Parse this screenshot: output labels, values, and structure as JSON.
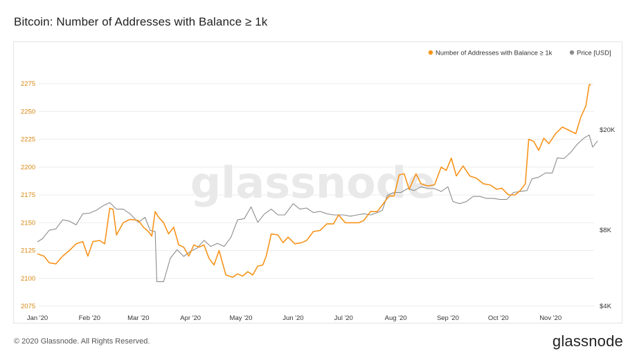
{
  "header": {
    "title": "Bitcoin: Number of Addresses with Balance ≥ 1k"
  },
  "footer": {
    "copyright": "© 2020 Glassnode. All Rights Reserved.",
    "brand": "glassnode"
  },
  "watermark": "glassnode",
  "colors": {
    "addresses": "#f7931a",
    "price": "#8c8c8c",
    "left_axis_text": "#d8860f"
  },
  "chart_data": {
    "type": "line",
    "title": "Bitcoin: Number of Addresses with Balance ≥ 1k",
    "legend_position": "top-right",
    "grid": "horizontal",
    "x_range": [
      "2020-01-01",
      "2020-11-29"
    ],
    "x_ticks": [
      "Jan '20",
      "Feb '20",
      "Mar '20",
      "Apr '20",
      "May '20",
      "Jun '20",
      "Jul '20",
      "Aug '20",
      "Sep '20",
      "Oct '20",
      "Nov '20"
    ],
    "y_left": {
      "ticks": [
        2075,
        2100,
        2125,
        2150,
        2175,
        2200,
        2225,
        2250,
        2275
      ],
      "ylim": [
        2075,
        2275
      ]
    },
    "y_right": {
      "scale": "log",
      "ticks": [
        4000,
        8000,
        20000
      ],
      "tick_labels": [
        "$4K",
        "$8K",
        "$20K"
      ],
      "ylim": [
        4000,
        20000
      ]
    },
    "series": [
      {
        "name": "Number of Addresses with Balance ≥ 1k",
        "axis": "left",
        "points": [
          [
            "2020-01-01",
            2122
          ],
          [
            "2020-01-05",
            2120
          ],
          [
            "2020-01-08",
            2114
          ],
          [
            "2020-01-12",
            2113
          ],
          [
            "2020-01-16",
            2120
          ],
          [
            "2020-01-20",
            2125
          ],
          [
            "2020-01-24",
            2131
          ],
          [
            "2020-01-28",
            2133
          ],
          [
            "2020-01-31",
            2120
          ],
          [
            "2020-02-03",
            2133
          ],
          [
            "2020-02-07",
            2134
          ],
          [
            "2020-02-10",
            2131
          ],
          [
            "2020-02-13",
            2163
          ],
          [
            "2020-02-15",
            2162
          ],
          [
            "2020-02-17",
            2139
          ],
          [
            "2020-02-21",
            2150
          ],
          [
            "2020-02-25",
            2153
          ],
          [
            "2020-03-01",
            2152
          ],
          [
            "2020-03-04",
            2146
          ],
          [
            "2020-03-07",
            2142
          ],
          [
            "2020-03-09",
            2138
          ],
          [
            "2020-03-11",
            2160
          ],
          [
            "2020-03-13",
            2155
          ],
          [
            "2020-03-16",
            2150
          ],
          [
            "2020-03-19",
            2140
          ],
          [
            "2020-03-22",
            2146
          ],
          [
            "2020-03-25",
            2130
          ],
          [
            "2020-03-28",
            2128
          ],
          [
            "2020-03-31",
            2120
          ],
          [
            "2020-04-03",
            2130
          ],
          [
            "2020-04-06",
            2128
          ],
          [
            "2020-04-09",
            2130
          ],
          [
            "2020-04-12",
            2118
          ],
          [
            "2020-04-15",
            2112
          ],
          [
            "2020-04-18",
            2125
          ],
          [
            "2020-04-22",
            2103
          ],
          [
            "2020-04-26",
            2101
          ],
          [
            "2020-04-29",
            2104
          ],
          [
            "2020-05-02",
            2102
          ],
          [
            "2020-05-05",
            2106
          ],
          [
            "2020-05-08",
            2103
          ],
          [
            "2020-05-11",
            2111
          ],
          [
            "2020-05-14",
            2112
          ],
          [
            "2020-05-16",
            2120
          ],
          [
            "2020-05-19",
            2140
          ],
          [
            "2020-05-23",
            2139
          ],
          [
            "2020-05-26",
            2132
          ],
          [
            "2020-05-29",
            2137
          ],
          [
            "2020-06-02",
            2131
          ],
          [
            "2020-06-06",
            2132
          ],
          [
            "2020-06-09",
            2134
          ],
          [
            "2020-06-13",
            2142
          ],
          [
            "2020-06-17",
            2143
          ],
          [
            "2020-06-21",
            2149
          ],
          [
            "2020-06-25",
            2149
          ],
          [
            "2020-06-28",
            2157
          ],
          [
            "2020-07-02",
            2150
          ],
          [
            "2020-07-06",
            2150
          ],
          [
            "2020-07-10",
            2150
          ],
          [
            "2020-07-13",
            2152
          ],
          [
            "2020-07-17",
            2160
          ],
          [
            "2020-07-21",
            2160
          ],
          [
            "2020-07-24",
            2166
          ],
          [
            "2020-07-28",
            2174
          ],
          [
            "2020-07-31",
            2174
          ],
          [
            "2020-08-03",
            2193
          ],
          [
            "2020-08-06",
            2194
          ],
          [
            "2020-08-09",
            2180
          ],
          [
            "2020-08-13",
            2194
          ],
          [
            "2020-08-16",
            2185
          ],
          [
            "2020-08-20",
            2183
          ],
          [
            "2020-08-24",
            2184
          ],
          [
            "2020-08-28",
            2200
          ],
          [
            "2020-08-31",
            2197
          ],
          [
            "2020-09-03",
            2208
          ],
          [
            "2020-09-06",
            2192
          ],
          [
            "2020-09-10",
            2201
          ],
          [
            "2020-09-14",
            2192
          ],
          [
            "2020-09-18",
            2190
          ],
          [
            "2020-09-22",
            2185
          ],
          [
            "2020-09-26",
            2184
          ],
          [
            "2020-09-30",
            2180
          ],
          [
            "2020-10-03",
            2181
          ],
          [
            "2020-10-07",
            2175
          ],
          [
            "2020-10-11",
            2175
          ],
          [
            "2020-10-14",
            2179
          ],
          [
            "2020-10-17",
            2185
          ],
          [
            "2020-10-19",
            2225
          ],
          [
            "2020-10-22",
            2223
          ],
          [
            "2020-10-25",
            2215
          ],
          [
            "2020-10-28",
            2226
          ],
          [
            "2020-10-31",
            2221
          ],
          [
            "2020-11-04",
            2230
          ],
          [
            "2020-11-08",
            2236
          ],
          [
            "2020-11-12",
            2233
          ],
          [
            "2020-11-16",
            2230
          ],
          [
            "2020-11-19",
            2245
          ],
          [
            "2020-11-22",
            2255
          ],
          [
            "2020-11-24",
            2274
          ],
          [
            "2020-11-25",
            2274
          ]
        ]
      },
      {
        "name": "Price [USD]",
        "axis": "right",
        "points": [
          [
            "2020-01-01",
            7200
          ],
          [
            "2020-01-04",
            7400
          ],
          [
            "2020-01-08",
            8000
          ],
          [
            "2020-01-12",
            8100
          ],
          [
            "2020-01-16",
            8800
          ],
          [
            "2020-01-20",
            8700
          ],
          [
            "2020-01-24",
            8400
          ],
          [
            "2020-01-28",
            9300
          ],
          [
            "2020-02-01",
            9350
          ],
          [
            "2020-02-05",
            9600
          ],
          [
            "2020-02-09",
            10000
          ],
          [
            "2020-02-13",
            10300
          ],
          [
            "2020-02-17",
            9700
          ],
          [
            "2020-02-21",
            9700
          ],
          [
            "2020-02-25",
            9300
          ],
          [
            "2020-03-01",
            8600
          ],
          [
            "2020-03-05",
            9000
          ],
          [
            "2020-03-08",
            8000
          ],
          [
            "2020-03-11",
            7900
          ],
          [
            "2020-03-12",
            5000
          ],
          [
            "2020-03-16",
            5000
          ],
          [
            "2020-03-20",
            6200
          ],
          [
            "2020-03-24",
            6700
          ],
          [
            "2020-03-28",
            6300
          ],
          [
            "2020-04-01",
            6600
          ],
          [
            "2020-04-05",
            6800
          ],
          [
            "2020-04-09",
            7300
          ],
          [
            "2020-04-13",
            6900
          ],
          [
            "2020-04-17",
            7100
          ],
          [
            "2020-04-21",
            6900
          ],
          [
            "2020-04-25",
            7500
          ],
          [
            "2020-04-29",
            8800
          ],
          [
            "2020-05-03",
            8900
          ],
          [
            "2020-05-07",
            9900
          ],
          [
            "2020-05-11",
            8600
          ],
          [
            "2020-05-15",
            9300
          ],
          [
            "2020-05-19",
            9700
          ],
          [
            "2020-05-23",
            9200
          ],
          [
            "2020-05-27",
            9200
          ],
          [
            "2020-06-01",
            10200
          ],
          [
            "2020-06-05",
            9700
          ],
          [
            "2020-06-09",
            9800
          ],
          [
            "2020-06-13",
            9400
          ],
          [
            "2020-06-17",
            9500
          ],
          [
            "2020-06-21",
            9300
          ],
          [
            "2020-06-25",
            9200
          ],
          [
            "2020-07-01",
            9200
          ],
          [
            "2020-07-05",
            9100
          ],
          [
            "2020-07-09",
            9200
          ],
          [
            "2020-07-13",
            9300
          ],
          [
            "2020-07-17",
            9200
          ],
          [
            "2020-07-21",
            9400
          ],
          [
            "2020-07-24",
            9600
          ],
          [
            "2020-07-27",
            11000
          ],
          [
            "2020-07-31",
            11300
          ],
          [
            "2020-08-04",
            11300
          ],
          [
            "2020-08-08",
            11700
          ],
          [
            "2020-08-12",
            11500
          ],
          [
            "2020-08-16",
            11900
          ],
          [
            "2020-08-20",
            11700
          ],
          [
            "2020-08-24",
            11700
          ],
          [
            "2020-08-28",
            11400
          ],
          [
            "2020-09-01",
            11900
          ],
          [
            "2020-09-04",
            10400
          ],
          [
            "2020-09-08",
            10200
          ],
          [
            "2020-09-12",
            10400
          ],
          [
            "2020-09-16",
            10900
          ],
          [
            "2020-09-20",
            10900
          ],
          [
            "2020-09-24",
            10700
          ],
          [
            "2020-09-28",
            10700
          ],
          [
            "2020-10-02",
            10600
          ],
          [
            "2020-10-06",
            10600
          ],
          [
            "2020-10-10",
            11300
          ],
          [
            "2020-10-14",
            11400
          ],
          [
            "2020-10-18",
            11500
          ],
          [
            "2020-10-21",
            12800
          ],
          [
            "2020-10-25",
            13000
          ],
          [
            "2020-10-29",
            13500
          ],
          [
            "2020-11-02",
            13500
          ],
          [
            "2020-11-05",
            15500
          ],
          [
            "2020-11-09",
            15400
          ],
          [
            "2020-11-13",
            16300
          ],
          [
            "2020-11-17",
            17600
          ],
          [
            "2020-11-21",
            18600
          ],
          [
            "2020-11-24",
            19100
          ],
          [
            "2020-11-26",
            17100
          ],
          [
            "2020-11-29",
            18100
          ]
        ]
      }
    ]
  }
}
